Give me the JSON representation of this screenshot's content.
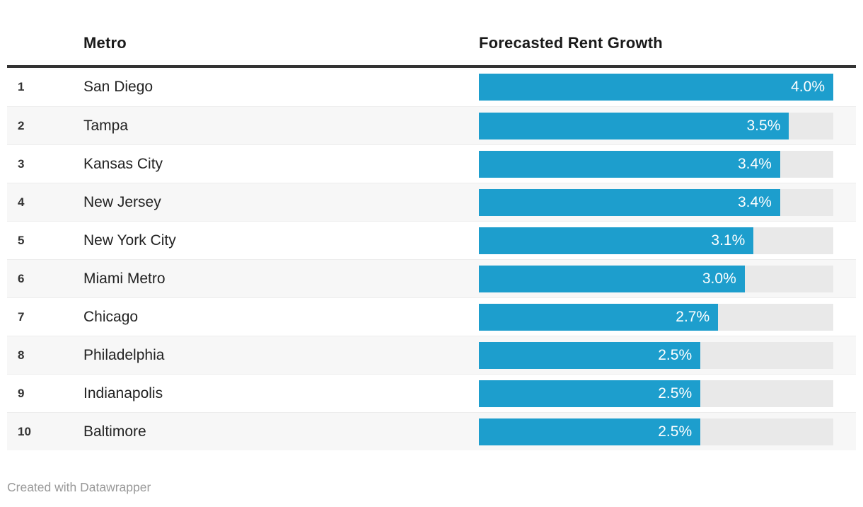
{
  "chart_data": {
    "type": "bar",
    "title": "",
    "orientation": "horizontal",
    "categories": [
      "San Diego",
      "Tampa",
      "Kansas City",
      "New Jersey",
      "New York City",
      "Miami Metro",
      "Chicago",
      "Philadelphia",
      "Indianapolis",
      "Baltimore"
    ],
    "values": [
      4.0,
      3.5,
      3.4,
      3.4,
      3.1,
      3.0,
      2.7,
      2.5,
      2.5,
      2.5
    ],
    "value_labels": [
      "4.0%",
      "3.5%",
      "3.4%",
      "3.4%",
      "3.1%",
      "3.0%",
      "2.7%",
      "2.5%",
      "2.5%",
      "2.5%"
    ],
    "xlabel": "Forecasted Rent Growth",
    "ylabel": "Metro",
    "xlim": [
      0,
      4.0
    ],
    "grid": false,
    "legend": false,
    "bar_color": "#1d9ecd",
    "track_color": "#e9e9e9"
  },
  "table": {
    "headers": {
      "metro": "Metro",
      "value": "Forecasted Rent Growth"
    },
    "rows": [
      {
        "rank": "1",
        "metro": "San Diego",
        "value": 4.0,
        "label": "4.0%"
      },
      {
        "rank": "2",
        "metro": "Tampa",
        "value": 3.5,
        "label": "3.5%"
      },
      {
        "rank": "3",
        "metro": "Kansas City",
        "value": 3.4,
        "label": "3.4%"
      },
      {
        "rank": "4",
        "metro": "New Jersey",
        "value": 3.4,
        "label": "3.4%"
      },
      {
        "rank": "5",
        "metro": "New York City",
        "value": 3.1,
        "label": "3.1%"
      },
      {
        "rank": "6",
        "metro": "Miami Metro",
        "value": 3.0,
        "label": "3.0%"
      },
      {
        "rank": "7",
        "metro": "Chicago",
        "value": 2.7,
        "label": "2.7%"
      },
      {
        "rank": "8",
        "metro": "Philadelphia",
        "value": 2.5,
        "label": "2.5%"
      },
      {
        "rank": "9",
        "metro": "Indianapolis",
        "value": 2.5,
        "label": "2.5%"
      },
      {
        "rank": "10",
        "metro": "Baltimore",
        "value": 2.5,
        "label": "2.5%"
      }
    ]
  },
  "footer": {
    "attribution": "Created with Datawrapper"
  }
}
